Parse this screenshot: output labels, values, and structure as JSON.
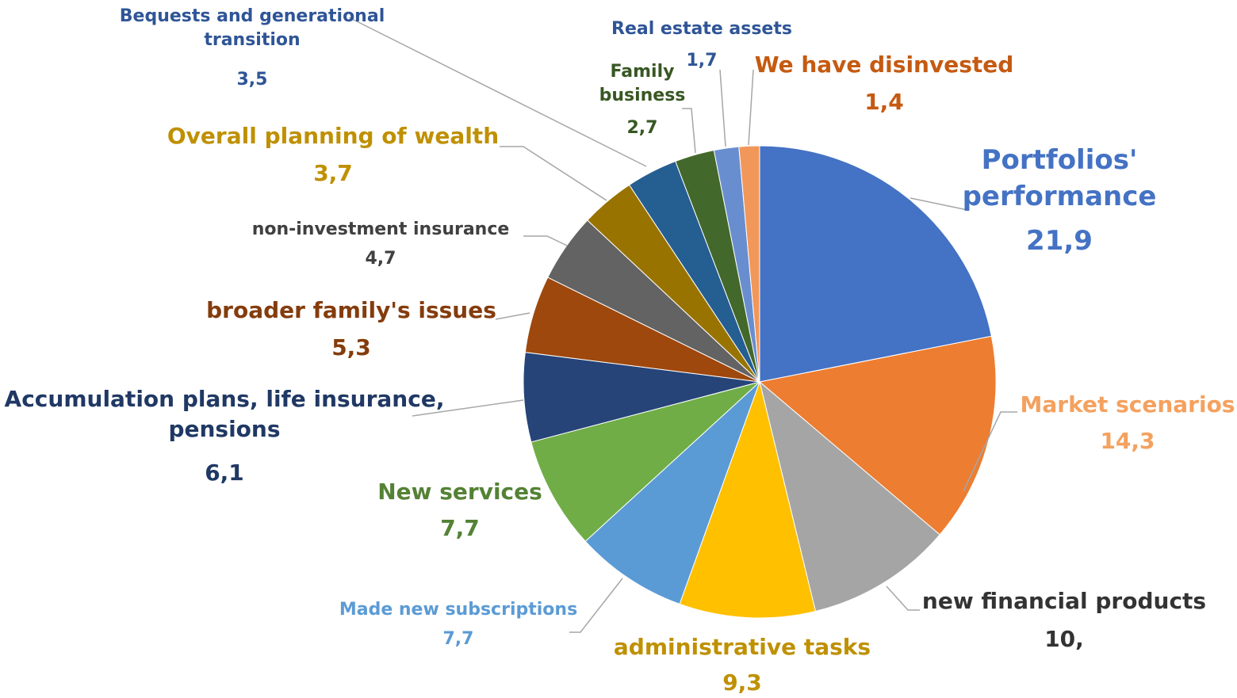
{
  "chart_data": {
    "type": "pie",
    "categories": [
      "Portfolios' performance",
      "Market scenarios",
      "new financial products",
      "administrative tasks",
      "Made new subscriptions",
      "New services",
      "Accumulation plans, life insurance, pensions",
      "broader family's issues",
      "non-investment insurance",
      "Overall planning of wealth",
      "Bequests and generational transition",
      "Family business",
      "Real estate assets",
      "We have disinvested"
    ],
    "values": [
      21.9,
      14.3,
      10,
      9.3,
      7.7,
      7.7,
      6.1,
      5.3,
      4.7,
      3.7,
      3.5,
      2.7,
      1.7,
      1.4
    ],
    "value_labels": [
      "21,9",
      "14,3",
      "10,",
      "9,3",
      "7,7",
      "7,7",
      "6,1",
      "5,3",
      "4,7",
      "3,7",
      "3,5",
      "2,7",
      "1,7",
      "1,4"
    ],
    "colors": [
      "#4472c4",
      "#ed7d31",
      "#a5a5a5",
      "#ffc000",
      "#5b9bd5",
      "#70ad47",
      "#264478",
      "#9e480e",
      "#636363",
      "#997300",
      "#255e91",
      "#43682b",
      "#698ed0",
      "#f1975a"
    ]
  }
}
